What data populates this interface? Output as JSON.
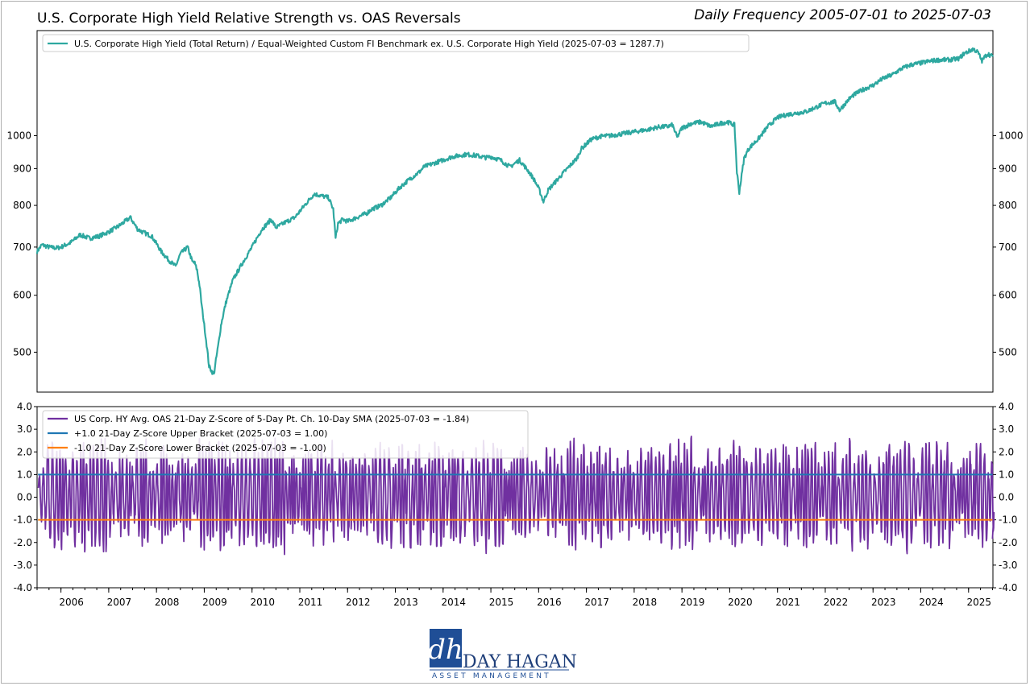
{
  "title": "U.S. Corporate High Yield Relative Strength vs. OAS Reversals",
  "subtitle": "Daily Frequency 2005-07-01 to 2025-07-03",
  "colors": {
    "ratio": "#2ea8a0",
    "zscore": "#7030a0",
    "upper": "#1f77b4",
    "lower": "#ff7f0e"
  },
  "chart_data": [
    {
      "type": "line",
      "yscale": "log",
      "xlim": [
        2005.5,
        2025.51
      ],
      "ylim": [
        440,
        1400
      ],
      "yticks": [
        500,
        600,
        700,
        800,
        900,
        1000
      ],
      "grid": false,
      "legend_position": "top-left",
      "series": [
        {
          "name": "U.S. Corporate High Yield (Total Return) / Equal-Weighted Custom FI Benchmark ex. U.S. Corporate High Yield (2025-07-03 = 1287.7)",
          "x": [
            2005.5,
            2005.6,
            2005.75,
            2005.9,
            2006.0,
            2006.2,
            2006.4,
            2006.6,
            2006.8,
            2007.0,
            2007.2,
            2007.4,
            2007.45,
            2007.6,
            2007.7,
            2007.9,
            2008.1,
            2008.25,
            2008.4,
            2008.5,
            2008.65,
            2008.75,
            2008.8,
            2008.85,
            2008.9,
            2008.95,
            2009.0,
            2009.05,
            2009.1,
            2009.2,
            2009.3,
            2009.35,
            2009.45,
            2009.6,
            2009.8,
            2010.0,
            2010.2,
            2010.4,
            2010.5,
            2010.7,
            2010.9,
            2011.1,
            2011.3,
            2011.45,
            2011.6,
            2011.7,
            2011.75,
            2011.8,
            2011.9,
            2012.0,
            2012.2,
            2012.4,
            2012.5,
            2012.7,
            2012.9,
            2013.1,
            2013.3,
            2013.5,
            2013.6,
            2013.8,
            2014.0,
            2014.2,
            2014.4,
            2014.5,
            2014.7,
            2014.9,
            2015.0,
            2015.2,
            2015.4,
            2015.6,
            2015.8,
            2015.9,
            2016.0,
            2016.1,
            2016.2,
            2016.4,
            2016.6,
            2016.8,
            2016.9,
            2017.1,
            2017.3,
            2017.5,
            2017.7,
            2017.9,
            2018.1,
            2018.3,
            2018.5,
            2018.7,
            2018.8,
            2018.9,
            2019.0,
            2019.2,
            2019.4,
            2019.6,
            2019.8,
            2019.95,
            2020.1,
            2020.15,
            2020.2,
            2020.25,
            2020.3,
            2020.4,
            2020.6,
            2020.8,
            2021.0,
            2021.2,
            2021.4,
            2021.6,
            2021.8,
            2022.0,
            2022.2,
            2022.3,
            2022.4,
            2022.5,
            2022.6,
            2022.8,
            2023.0,
            2023.2,
            2023.4,
            2023.6,
            2023.8,
            2024.0,
            2024.2,
            2024.4,
            2024.6,
            2024.8,
            2024.9,
            2025.0,
            2025.1,
            2025.2,
            2025.28,
            2025.33,
            2025.4,
            2025.51
          ],
          "y": [
            690,
            705,
            700,
            698,
            700,
            710,
            728,
            720,
            725,
            735,
            748,
            765,
            770,
            742,
            735,
            725,
            690,
            672,
            658,
            685,
            700,
            668,
            665,
            650,
            620,
            578,
            545,
            512,
            478,
            465,
            515,
            545,
            585,
            630,
            665,
            700,
            740,
            765,
            745,
            758,
            770,
            800,
            830,
            825,
            820,
            790,
            720,
            755,
            765,
            760,
            770,
            780,
            790,
            800,
            820,
            848,
            870,
            890,
            905,
            915,
            925,
            935,
            940,
            942,
            938,
            932,
            935,
            925,
            905,
            925,
            890,
            870,
            845,
            810,
            840,
            870,
            900,
            930,
            960,
            988,
            998,
            1000,
            1005,
            1010,
            1015,
            1020,
            1028,
            1030,
            1035,
            995,
            1025,
            1040,
            1045,
            1030,
            1040,
            1045,
            1035,
            890,
            835,
            880,
            930,
            960,
            990,
            1030,
            1060,
            1070,
            1075,
            1080,
            1095,
            1110,
            1115,
            1085,
            1105,
            1125,
            1140,
            1160,
            1175,
            1200,
            1215,
            1240,
            1255,
            1262,
            1270,
            1275,
            1275,
            1280,
            1300,
            1310,
            1320,
            1305,
            1270,
            1285,
            1300,
            1288
          ]
        }
      ]
    },
    {
      "type": "line",
      "xlim": [
        2005.5,
        2025.51
      ],
      "ylim": [
        -4,
        4
      ],
      "yticks": [
        4.0,
        3.0,
        2.0,
        1.0,
        0.0,
        -1.0,
        -2.0,
        -3.0,
        -4.0
      ],
      "ytick_labels": [
        "4.0",
        "3.0",
        "2.0",
        "1.0",
        "0.0",
        "-1.0",
        "-2.0",
        "-3.0",
        "-4.0"
      ],
      "xticks": [
        2006,
        2007,
        2008,
        2009,
        2010,
        2011,
        2012,
        2013,
        2014,
        2015,
        2016,
        2017,
        2018,
        2019,
        2020,
        2021,
        2022,
        2023,
        2024,
        2025
      ],
      "xtick_labels": [
        "2006",
        "2007",
        "2008",
        "2009",
        "2010",
        "2011",
        "2012",
        "2013",
        "2014",
        "2015",
        "2016",
        "2017",
        "2018",
        "2019",
        "2020",
        "2021",
        "2022",
        "2023",
        "2024",
        "2025"
      ],
      "grid": false,
      "legend_position": "top-left",
      "series": [
        {
          "name": "US Corp. HY Avg. OAS 21-Day Z-Score of 5-Day Pt. Ch. 10-Day SMA (2025-07-03 = -1.84)",
          "kind": "oscillator",
          "approx_cycle_years": 0.072,
          "approx_amplitude": 2.2,
          "min": -3.3,
          "max": 3.35,
          "last": -1.84
        },
        {
          "name": "+1.0 21-Day Z-Score Upper Bracket (2025-07-03 = 1.00)",
          "constant": 1.0
        },
        {
          "name": "-1.0 21-Day Z-Score Lower Bracket (2025-07-03 = -1.00)",
          "constant": -1.0
        }
      ]
    }
  ],
  "logo": {
    "monogram": "dh",
    "name": "DAY HAGAN",
    "tagline": "ASSET MANAGEMENT"
  }
}
